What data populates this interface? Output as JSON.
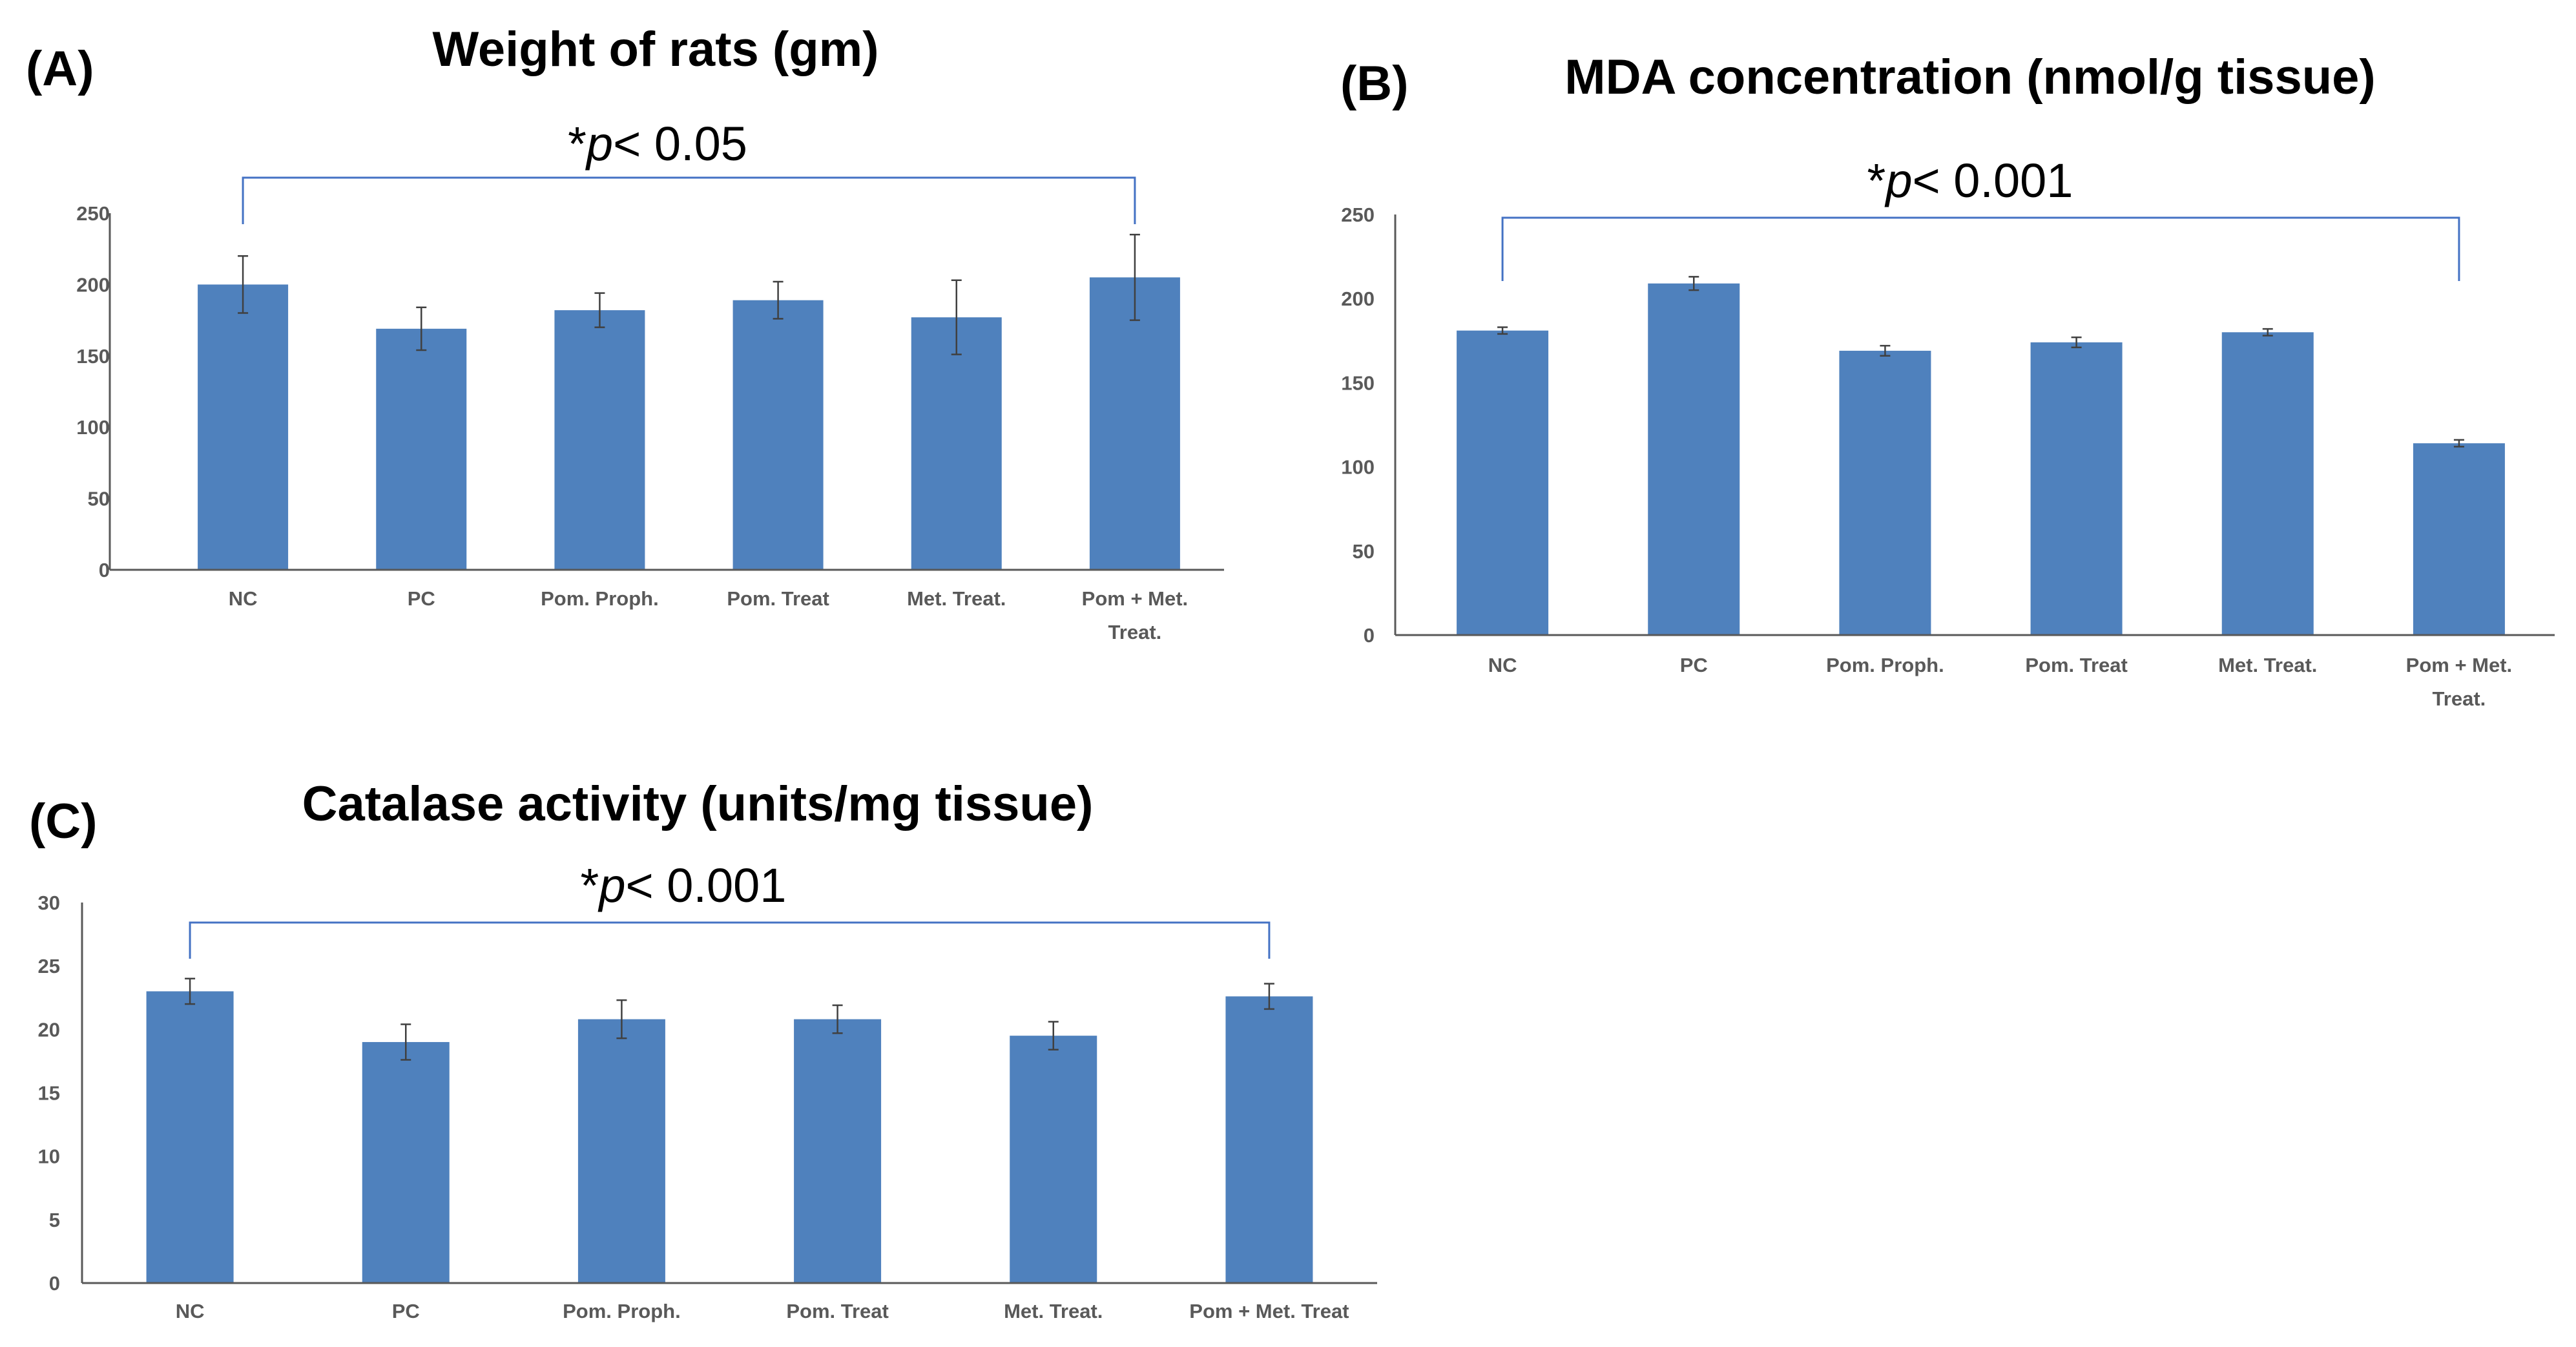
{
  "colors": {
    "bar": "#4f81bd",
    "bracket": "#4472c4",
    "tick": "#595959",
    "text": "#000000"
  },
  "chart_data": [
    {
      "id": "A",
      "panel_label": "(A)",
      "type": "bar",
      "title": "Weight of rats (gm)",
      "significance": {
        "star": "*",
        "p": "p",
        "rest": "< 0.05"
      },
      "categories": [
        [
          "NC"
        ],
        [
          "PC"
        ],
        [
          "Pom. Proph."
        ],
        [
          "Pom. Treat"
        ],
        [
          "Met. Treat."
        ],
        [
          "Pom + Met.",
          "Treat."
        ]
      ],
      "values": [
        200,
        169,
        182,
        189,
        177,
        205
      ],
      "errors": [
        20,
        15,
        12,
        13,
        26,
        30
      ],
      "ylim": [
        0,
        250
      ],
      "yticks": [
        0,
        50,
        100,
        150,
        200,
        250
      ],
      "bracket_between": [
        0,
        5
      ],
      "xlabel": "",
      "ylabel": ""
    },
    {
      "id": "B",
      "panel_label": "(B)",
      "type": "bar",
      "title": "MDA concentration (nmol/g tissue)",
      "significance": {
        "star": "*",
        "p": "p",
        "rest": "< 0.001"
      },
      "categories": [
        [
          "NC"
        ],
        [
          "PC"
        ],
        [
          "Pom. Proph."
        ],
        [
          "Pom. Treat"
        ],
        [
          "Met. Treat."
        ],
        [
          "Pom + Met.",
          "Treat."
        ]
      ],
      "values": [
        181,
        209,
        169,
        174,
        180,
        114
      ],
      "errors": [
        2,
        4,
        3,
        3,
        2,
        2
      ],
      "ylim": [
        0,
        250
      ],
      "yticks": [
        0,
        50,
        100,
        150,
        200,
        250
      ],
      "bracket_between": [
        0,
        5
      ],
      "xlabel": "",
      "ylabel": ""
    },
    {
      "id": "C",
      "panel_label": "(C)",
      "type": "bar",
      "title": "Catalase activity (units/mg tissue)",
      "significance": {
        "star": "*",
        "p": "p",
        "rest": "< 0.001"
      },
      "categories": [
        [
          "NC"
        ],
        [
          "PC"
        ],
        [
          "Pom. Proph."
        ],
        [
          "Pom. Treat"
        ],
        [
          "Met. Treat."
        ],
        [
          "Pom + Met. Treat"
        ]
      ],
      "values": [
        23,
        19,
        20.8,
        20.8,
        19.5,
        22.6
      ],
      "errors": [
        1,
        1.4,
        1.5,
        1.1,
        1.1,
        1
      ],
      "ylim": [
        0,
        30
      ],
      "yticks": [
        0,
        5,
        10,
        15,
        20,
        25,
        30
      ],
      "bracket_between": [
        0,
        5
      ],
      "xlabel": "",
      "ylabel": ""
    }
  ]
}
